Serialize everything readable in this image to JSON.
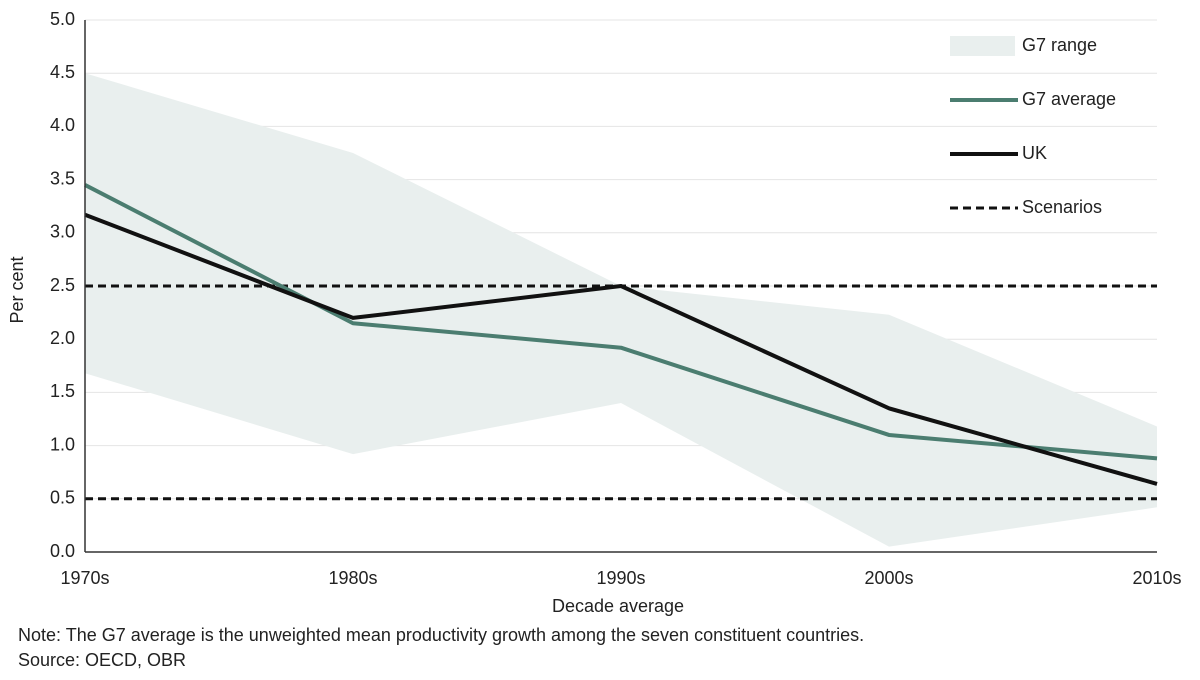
{
  "chart_data": {
    "type": "line",
    "categories": [
      "1970s",
      "1980s",
      "1990s",
      "2000s",
      "2010s"
    ],
    "x_label": "Decade average",
    "y_label": "Per cent",
    "ylim": [
      0,
      5
    ],
    "yticks": [
      {
        "value": 0,
        "label": "0.0"
      },
      0.5,
      {
        "value": 1,
        "label": "1.0"
      },
      1.5,
      {
        "value": 2,
        "label": "2.0"
      },
      2.5,
      {
        "value": 3,
        "label": "3.0"
      },
      3.5,
      {
        "value": 4,
        "label": "4.0"
      },
      4.5,
      {
        "value": 5,
        "label": "5.0"
      }
    ],
    "grid": true,
    "legend": "upper right",
    "series": [
      {
        "name": "G7 range",
        "color": "#e9efee",
        "kind": "range",
        "upper": [
          4.5,
          3.75,
          2.5,
          2.23,
          1.18
        ],
        "lower": [
          1.68,
          0.92,
          1.4,
          0.05,
          0.42
        ]
      },
      {
        "name": "G7 average",
        "color": "#4b7d70",
        "kind": "line",
        "values": [
          3.45,
          2.15,
          1.92,
          1.1,
          0.88
        ]
      },
      {
        "name": "UK",
        "color": "#111111",
        "kind": "line",
        "values": [
          3.17,
          2.2,
          2.5,
          1.35,
          0.64
        ]
      },
      {
        "name": "Scenarios",
        "color": "#111111",
        "kind": "hline",
        "levels": [
          2.5,
          0.5
        ]
      }
    ],
    "notes": [
      "Note: The G7 average is the unweighted mean productivity growth among the seven constituent countries.",
      "Source: OECD, OBR"
    ]
  }
}
